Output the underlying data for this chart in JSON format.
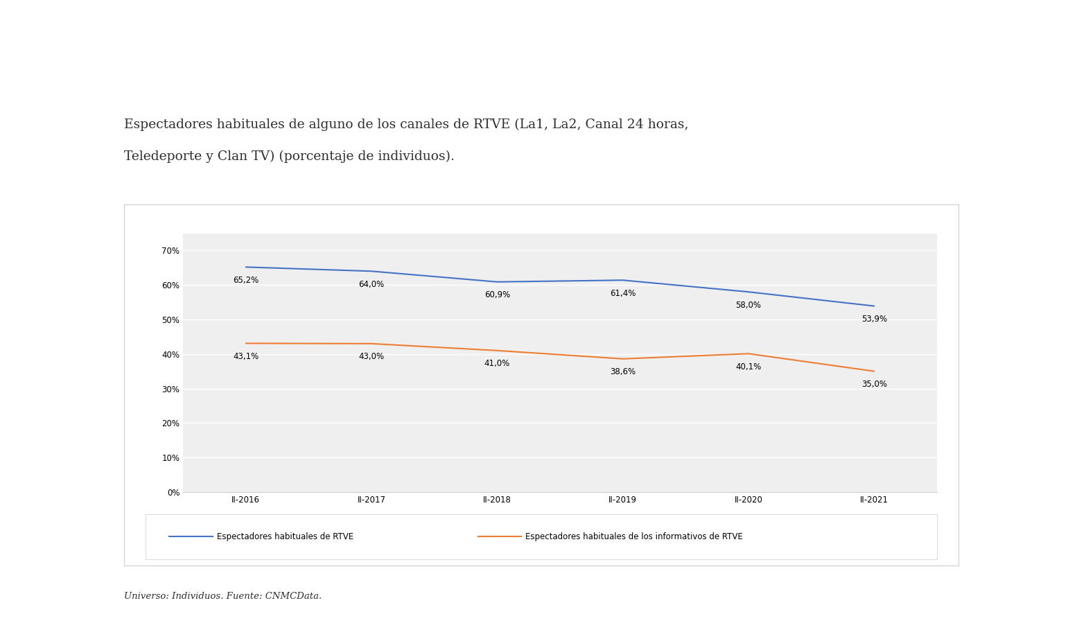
{
  "title_line1": "Espectadores habituales de alguno de los canales de RTVE (La1, La2, Canal 24 horas,",
  "title_line2": "Teledeporte y Clan TV) (porcentaje de individuos).",
  "footnote": "Universo: Individuos. Fuente: CNMCData.",
  "x_labels": [
    "II-2016",
    "II-2017",
    "II-2018",
    "II-2019",
    "II-2020",
    "II-2021"
  ],
  "x_values": [
    0,
    1,
    2,
    3,
    4,
    5
  ],
  "blue_values": [
    65.2,
    64.0,
    60.9,
    61.4,
    58.0,
    53.9
  ],
  "orange_values": [
    43.1,
    43.0,
    41.0,
    38.6,
    40.1,
    35.0
  ],
  "blue_labels": [
    "65,2%",
    "64,0%",
    "60,9%",
    "61,4%",
    "58,0%",
    "53,9%"
  ],
  "orange_labels": [
    "43,1%",
    "43,0%",
    "41,0%",
    "38,6%",
    "40,1%",
    "35,0%"
  ],
  "blue_color": "#4472C4",
  "orange_color": "#ED7D31",
  "legend_blue": "Espectadores habituales de RTVE",
  "legend_orange": "Espectadores habituales de los informativos de RTVE",
  "ylim": [
    0,
    75
  ],
  "yticks": [
    0,
    10,
    20,
    30,
    40,
    50,
    60,
    70
  ],
  "ytick_labels": [
    "0%",
    "10%",
    "20%",
    "30%",
    "40%",
    "50%",
    "60%",
    "70%"
  ],
  "background_color": "#ffffff",
  "plot_bg_color": "#efefef",
  "grid_color": "#ffffff",
  "border_color": "#cccccc",
  "title_fontsize": 13.5,
  "label_fontsize": 8.5,
  "tick_fontsize": 8.5,
  "legend_fontsize": 8.5,
  "footnote_fontsize": 9.5
}
